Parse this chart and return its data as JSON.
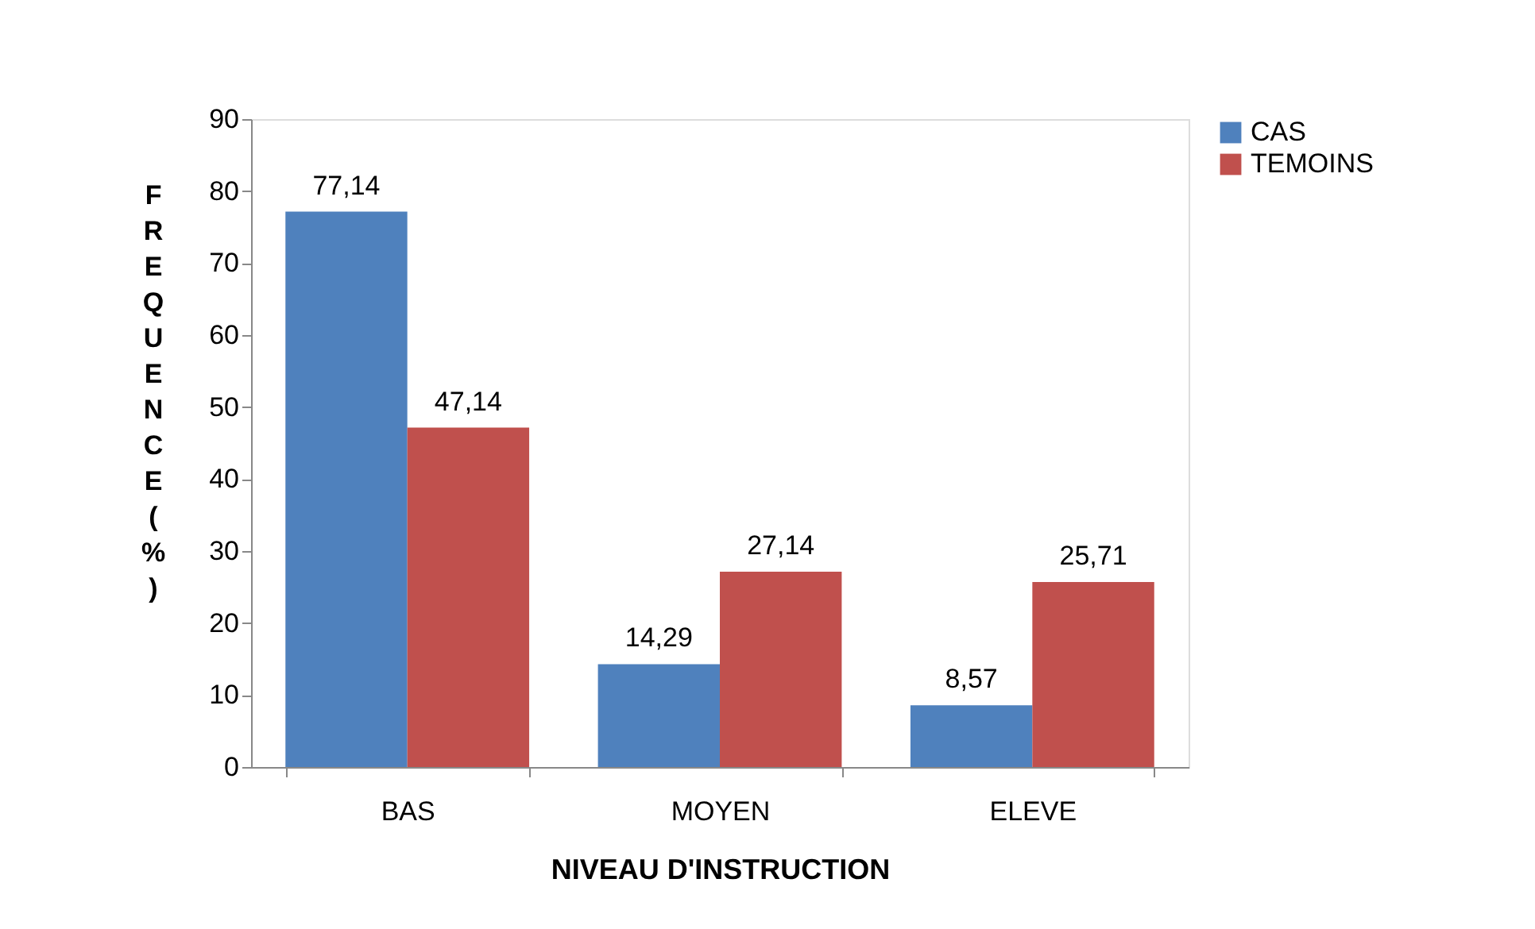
{
  "chart_data": {
    "type": "bar",
    "xlabel": "NIVEAU D'INSTRUCTION",
    "ylabel": "FREQUENCE (%)",
    "categories": [
      "BAS",
      "MOYEN",
      "ELEVE"
    ],
    "series": [
      {
        "name": "CAS",
        "color": "#4f81bd",
        "values": [
          77.14,
          14.29,
          8.57
        ],
        "value_labels": [
          "77,14",
          "14,29",
          "8,57"
        ]
      },
      {
        "name": "TEMOINS",
        "color": "#c0504d",
        "values": [
          47.14,
          27.14,
          25.71
        ],
        "value_labels": [
          "47,14",
          "27,14",
          "25,71"
        ]
      }
    ],
    "ylim": [
      0,
      90
    ],
    "yticks": [
      0,
      10,
      20,
      30,
      40,
      50,
      60,
      70,
      80,
      90
    ],
    "grid": false,
    "legend": "right"
  }
}
